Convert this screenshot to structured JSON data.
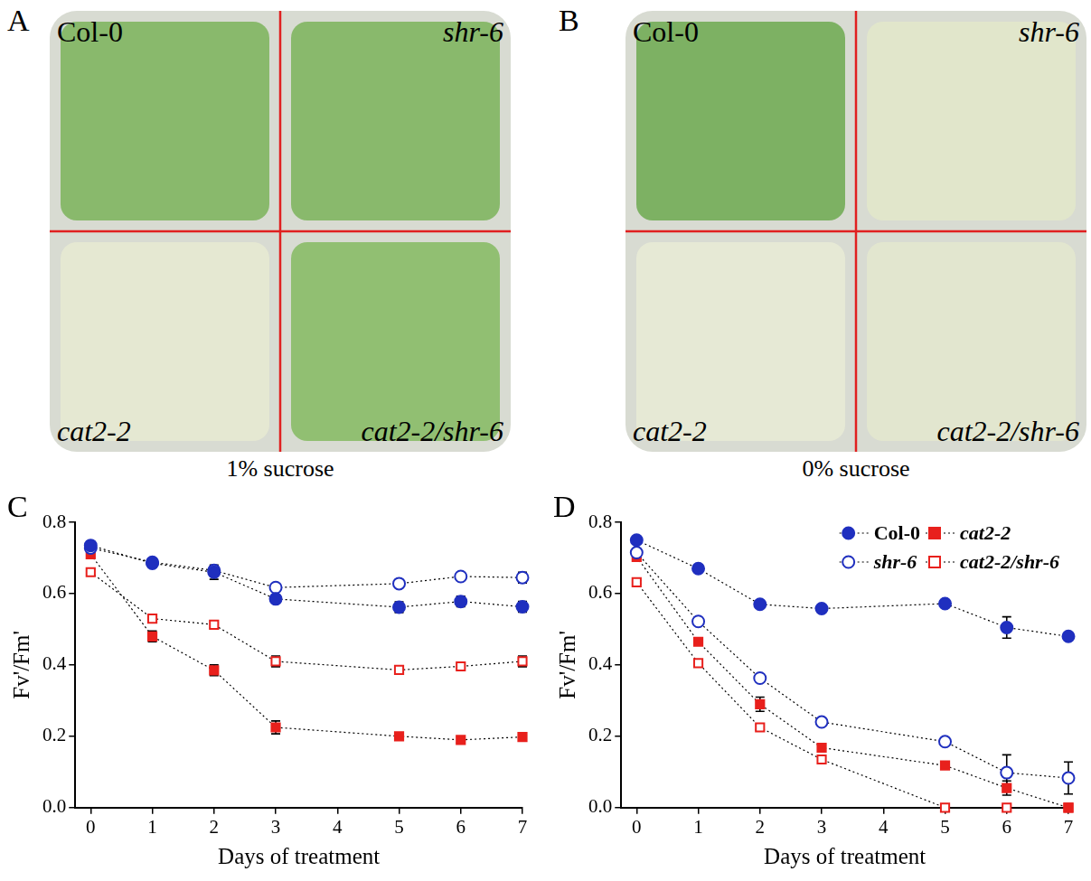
{
  "photo_panels": [
    {
      "letter": "A",
      "caption": "1% sucrose",
      "labels": [
        "Col-0",
        "shr-6",
        "cat2-2",
        "cat2-2/shr-6"
      ]
    },
    {
      "letter": "B",
      "caption": "0% sucrose",
      "labels": [
        "Col-0",
        "shr-6",
        "cat2-2",
        "cat2-2/shr-6"
      ]
    }
  ],
  "chart_data": [
    {
      "type": "line",
      "panel_label": "C",
      "x_label": "Days of treatment",
      "y_label": "Fv'/Fm'",
      "x": [
        0,
        1,
        2,
        3,
        5,
        6,
        7
      ],
      "xlim": [
        -0.25,
        7
      ],
      "xticks": [
        0,
        1,
        2,
        3,
        4,
        5,
        6,
        7
      ],
      "ylim": [
        0,
        0.8
      ],
      "yticks": [
        {
          "value": 0,
          "label": "0.0"
        },
        0.2,
        0.4,
        0.6,
        0.8
      ],
      "grid": false,
      "series": [
        {
          "name": "Col-0",
          "color": "#1f2fbf",
          "marker": "circle",
          "line_style": "dotted",
          "values": [
            0.735,
            0.685,
            0.66,
            0.585,
            0.562,
            0.578,
            0.563
          ],
          "errors": [
            0.008,
            0.008,
            0.02,
            0.01,
            0.015,
            0.015,
            0.015
          ]
        },
        {
          "name": "shr-6",
          "color": "#1f2fbf",
          "marker": "circle_open",
          "line_style": "dotted",
          "values": [
            0.728,
            0.688,
            0.665,
            0.617,
            0.628,
            0.648,
            0.645
          ],
          "errors": [
            0.008,
            0.008,
            0.01,
            0.01,
            0.008,
            0.008,
            0.015
          ]
        },
        {
          "name": "cat2-2",
          "color": "#e8201c",
          "marker": "square",
          "line_style": "dotted",
          "values": [
            0.71,
            0.48,
            0.385,
            0.225,
            0.2,
            0.19,
            0.198
          ],
          "errors": [
            0.008,
            0.015,
            0.015,
            0.018,
            0.008,
            0.008,
            0.008
          ]
        },
        {
          "name": "cat2-2/shr-6",
          "color": "#e8201c",
          "marker": "square_open",
          "line_style": "dotted",
          "values": [
            0.66,
            0.53,
            0.513,
            0.41,
            0.386,
            0.396,
            0.41
          ],
          "errors": [
            0.008,
            0.01,
            0.01,
            0.015,
            0.008,
            0.008,
            0.015
          ]
        }
      ]
    },
    {
      "type": "line",
      "panel_label": "D",
      "x_label": "Days of treatment",
      "y_label": "Fv'/Fm'",
      "x": [
        0,
        1,
        2,
        3,
        5,
        6,
        7
      ],
      "xlim": [
        -0.25,
        7
      ],
      "xticks": [
        0,
        1,
        2,
        3,
        4,
        5,
        6,
        7
      ],
      "ylim": [
        0,
        0.8
      ],
      "yticks": [
        {
          "value": 0,
          "label": "0.0"
        },
        0.2,
        0.4,
        0.6,
        0.8
      ],
      "grid": false,
      "legend": "upper right",
      "series": [
        {
          "name": "Col-0",
          "color": "#1f2fbf",
          "marker": "circle",
          "line_style": "dotted",
          "values": [
            0.75,
            0.67,
            0.57,
            0.558,
            0.572,
            0.505,
            0.48
          ],
          "errors": [
            0.005,
            0.005,
            0.01,
            0.005,
            0.005,
            0.03,
            0.008
          ]
        },
        {
          "name": "shr-6",
          "color": "#1f2fbf",
          "marker": "circle_open",
          "line_style": "dotted",
          "values": [
            0.715,
            0.522,
            0.363,
            0.24,
            0.185,
            0.098,
            0.083
          ],
          "errors": [
            0.005,
            0.008,
            0.008,
            0.008,
            0.008,
            0.05,
            0.045
          ]
        },
        {
          "name": "cat2-2",
          "color": "#e8201c",
          "marker": "square",
          "line_style": "dotted",
          "values": [
            0.703,
            0.465,
            0.29,
            0.168,
            0.118,
            0.055,
            0.0
          ],
          "errors": [
            0.005,
            0.008,
            0.02,
            0.008,
            0.005,
            0.02,
            0.0
          ]
        },
        {
          "name": "cat2-2/shr-6",
          "color": "#e8201c",
          "marker": "square_open",
          "line_style": "dotted",
          "values": [
            0.632,
            0.405,
            0.225,
            0.135,
            0.0,
            0.0,
            0.0
          ],
          "errors": [
            0.005,
            0.008,
            0.008,
            0.008,
            0.0,
            0.0,
            0.0
          ]
        }
      ]
    }
  ]
}
